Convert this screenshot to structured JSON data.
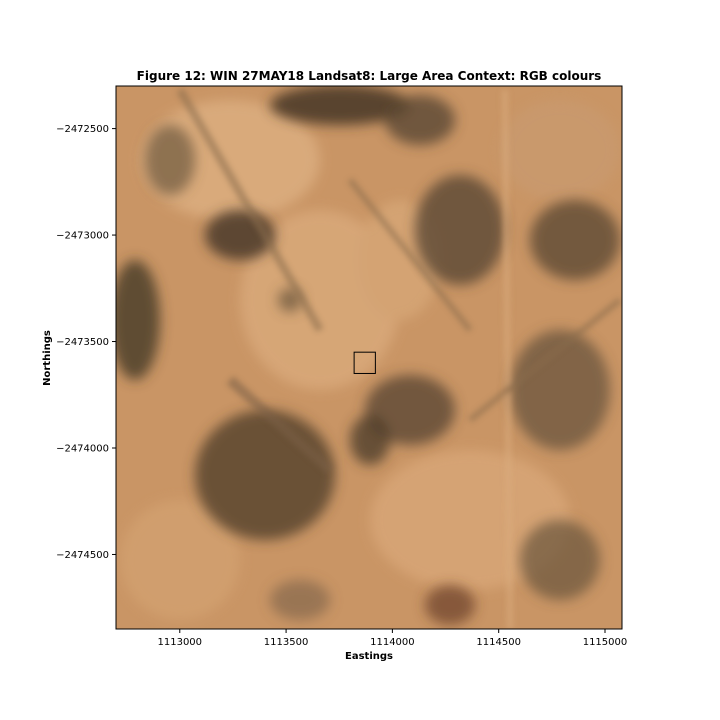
{
  "chart_data": {
    "type": "image",
    "title": "Figure 12: WIN 27MAY18  Landsat8: Large Area Context: RGB colours",
    "xlabel": "Eastings",
    "ylabel": "Northings",
    "xlim": [
      1112700,
      1115080
    ],
    "ylim": [
      -2474850,
      -2472300
    ],
    "x_ticks": [
      1113000,
      1113500,
      1114000,
      1114500,
      1115000
    ],
    "x_tick_labels": [
      "1113000",
      "1113500",
      "1114000",
      "1114500",
      "1115000"
    ],
    "y_ticks": [
      -2472500,
      -2473000,
      -2473500,
      -2474000,
      -2474500
    ],
    "y_tick_labels": [
      "−2472500",
      "−2473000",
      "−2473500",
      "−2474000",
      "−2474500"
    ],
    "highlight_box": {
      "x0": 1113820,
      "x1": 1113920,
      "y0": -2473650,
      "y1": -2473550,
      "color": "#000000"
    },
    "image_palette": {
      "base": "#c99565",
      "light": "#dcae80",
      "dark": "#55442f",
      "medium": "#8a6d4e"
    }
  }
}
